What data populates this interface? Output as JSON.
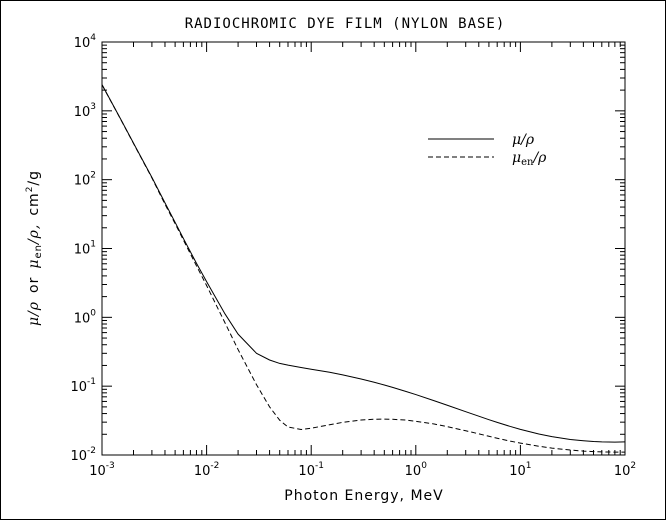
{
  "chart_data": {
    "type": "line",
    "title": "RADIOCHROMIC DYE FILM (NYLON BASE)",
    "xlabel": "Photon Energy, MeV",
    "ylabel": "μ/ρ or μen/ρ, cm²/g",
    "xscale": "log",
    "yscale": "log",
    "xlim": [
      0.001,
      100
    ],
    "ylim": [
      0.01,
      10000
    ],
    "x_ticks": [
      {
        "base": "10",
        "exp": "-3",
        "value": 0.001
      },
      {
        "base": "10",
        "exp": "-2",
        "value": 0.01
      },
      {
        "base": "10",
        "exp": "-1",
        "value": 0.1
      },
      {
        "base": "10",
        "exp": "0",
        "value": 1
      },
      {
        "base": "10",
        "exp": "1",
        "value": 10
      },
      {
        "base": "10",
        "exp": "2",
        "value": 100
      }
    ],
    "y_ticks": [
      {
        "base": "10",
        "exp": "-2",
        "value": 0.01
      },
      {
        "base": "10",
        "exp": "-1",
        "value": 0.1
      },
      {
        "base": "10",
        "exp": "0",
        "value": 1
      },
      {
        "base": "10",
        "exp": "1",
        "value": 10
      },
      {
        "base": "10",
        "exp": "2",
        "value": 100
      },
      {
        "base": "10",
        "exp": "3",
        "value": 1000
      },
      {
        "base": "10",
        "exp": "4",
        "value": 10000
      }
    ],
    "legend_position": "upper-right",
    "series": [
      {
        "name": "μ/ρ",
        "style": "solid",
        "x": [
          0.001,
          0.0015,
          0.002,
          0.003,
          0.004,
          0.005,
          0.006,
          0.008,
          0.01,
          0.015,
          0.02,
          0.03,
          0.04,
          0.05,
          0.06,
          0.08,
          0.1,
          0.15,
          0.2,
          0.3,
          0.4,
          0.5,
          0.6,
          0.8,
          1,
          1.5,
          2,
          3,
          4,
          5,
          6,
          8,
          10,
          15,
          20,
          30,
          40,
          50,
          60,
          80,
          100
        ],
        "y": [
          2400,
          770,
          340,
          108,
          46,
          24,
          14,
          6.1,
          3.3,
          1.12,
          0.57,
          0.3,
          0.24,
          0.214,
          0.202,
          0.187,
          0.176,
          0.159,
          0.146,
          0.127,
          0.114,
          0.104,
          0.096,
          0.084,
          0.0755,
          0.0614,
          0.0528,
          0.0426,
          0.0366,
          0.0326,
          0.0298,
          0.026,
          0.0236,
          0.0202,
          0.0185,
          0.0168,
          0.0161,
          0.0157,
          0.0155,
          0.0154,
          0.0155
        ]
      },
      {
        "name": "μen/ρ",
        "style": "dashed",
        "x": [
          0.001,
          0.0015,
          0.002,
          0.003,
          0.004,
          0.005,
          0.006,
          0.008,
          0.01,
          0.015,
          0.02,
          0.03,
          0.04,
          0.05,
          0.06,
          0.08,
          0.1,
          0.15,
          0.2,
          0.3,
          0.4,
          0.5,
          0.6,
          0.8,
          1,
          1.5,
          2,
          3,
          4,
          5,
          6,
          8,
          10,
          15,
          20,
          30,
          40,
          50,
          60,
          80,
          100
        ],
        "y": [
          2390,
          765,
          336,
          106,
          44,
          23,
          13.3,
          5.6,
          2.9,
          0.83,
          0.34,
          0.105,
          0.05,
          0.032,
          0.0255,
          0.0235,
          0.0245,
          0.0275,
          0.0298,
          0.0322,
          0.0331,
          0.0332,
          0.033,
          0.0322,
          0.0309,
          0.0282,
          0.0258,
          0.0225,
          0.0203,
          0.0187,
          0.0175,
          0.0159,
          0.0149,
          0.0134,
          0.0126,
          0.0118,
          0.0114,
          0.0112,
          0.0111,
          0.011,
          0.011
        ]
      }
    ]
  },
  "legend": [
    {
      "symbol": "μ",
      "sub": "",
      "rest": "/ρ"
    },
    {
      "symbol": "μ",
      "sub": "en",
      "rest": "/ρ"
    }
  ],
  "ylabel_parts": {
    "a_sym": "μ",
    "a_rest": "/ρ",
    "or": "or",
    "b_sym": "μ",
    "b_sub": "en",
    "b_rest": "/ρ,",
    "unit_base": "cm",
    "unit_exp": "2",
    "unit_rest": "/g"
  }
}
